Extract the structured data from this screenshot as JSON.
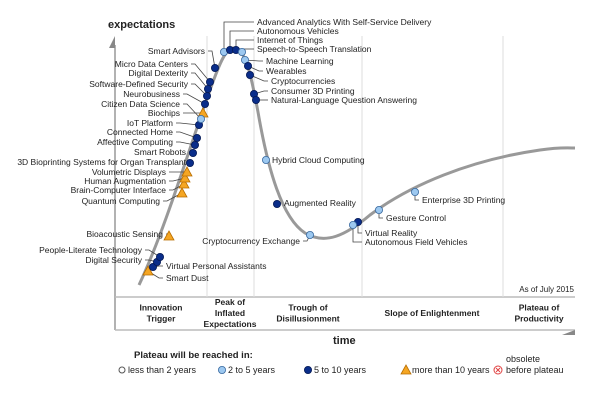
{
  "axes": {
    "y_label": "expectations",
    "x_label": "time"
  },
  "as_of": "As of July 2015",
  "phases": [
    {
      "lines": [
        "Innovation",
        "Trigger"
      ]
    },
    {
      "lines": [
        "Peak of",
        "Inflated",
        "Expectations"
      ]
    },
    {
      "lines": [
        "Trough of",
        "Disillusionment"
      ]
    },
    {
      "lines": [
        "Slope of Enlightenment"
      ]
    },
    {
      "lines": [
        "Plateau of",
        "Productivity"
      ]
    }
  ],
  "legend": {
    "title": "Plateau will be reached in:",
    "items": [
      {
        "key": "lt2",
        "label": "less than 2 years",
        "color": "#ffffff"
      },
      {
        "key": "2to5",
        "label": "2 to 5 years",
        "color": "#9cc8f0"
      },
      {
        "key": "5to10",
        "label": "5 to 10 years",
        "color": "#0a2d8a"
      },
      {
        "key": "gt10",
        "label": "more than 10 years",
        "color": "#f5a623"
      },
      {
        "key": "obs",
        "label": "obsolete before plateau",
        "lines": [
          "obsolete",
          "before plateau"
        ],
        "color": "#e04040"
      }
    ]
  },
  "technologies": [
    {
      "name": "Smart Dust",
      "cat": "gt10"
    },
    {
      "name": "Virtual Personal Assistants",
      "cat": "5to10"
    },
    {
      "name": "Digital Security",
      "cat": "5to10"
    },
    {
      "name": "People-Literate Technology",
      "cat": "5to10"
    },
    {
      "name": "Bioacoustic Sensing",
      "cat": "gt10"
    },
    {
      "name": "Quantum Computing",
      "cat": "gt10"
    },
    {
      "name": "Brain-Computer Interface",
      "cat": "gt10"
    },
    {
      "name": "Human Augmentation",
      "cat": "gt10"
    },
    {
      "name": "Volumetric Displays",
      "cat": "gt10"
    },
    {
      "name": "3D Bioprinting Systems for Organ Transplant",
      "cat": "5to10"
    },
    {
      "name": "Smart Robots",
      "cat": "5to10"
    },
    {
      "name": "Affective  Computing",
      "cat": "5to10"
    },
    {
      "name": "Connected Home",
      "cat": "5to10"
    },
    {
      "name": "IoT Platform",
      "cat": "5to10"
    },
    {
      "name": "Biochips",
      "cat": "gt10"
    },
    {
      "name": "Citizen Data Science",
      "cat": "2to5"
    },
    {
      "name": "Neurobusiness",
      "cat": "5to10"
    },
    {
      "name": "Software-Defined Security",
      "cat": "5to10"
    },
    {
      "name": "Digital Dexterity",
      "cat": "5to10"
    },
    {
      "name": "Micro Data Centers",
      "cat": "5to10"
    },
    {
      "name": "Smart Advisors",
      "cat": "5to10"
    },
    {
      "name": "Advanced Analytics With Self-Service Delivery",
      "cat": "2to5"
    },
    {
      "name": "Autonomous Vehicles",
      "cat": "5to10"
    },
    {
      "name": "Internet of Things",
      "cat": "5to10"
    },
    {
      "name": "Speech-to-Speech Translation",
      "cat": "2to5"
    },
    {
      "name": "Machine Learning",
      "cat": "2to5"
    },
    {
      "name": "Wearables",
      "cat": "5to10"
    },
    {
      "name": "Cryptocurrencies",
      "cat": "5to10"
    },
    {
      "name": "Consumer 3D Printing",
      "cat": "5to10"
    },
    {
      "name": "Natural-Language Question Answering",
      "cat": "5to10"
    },
    {
      "name": "Hybrid Cloud Computing",
      "cat": "2to5"
    },
    {
      "name": "Augmented Reality",
      "cat": "5to10"
    },
    {
      "name": "Cryptocurrency Exchange",
      "cat": "2to5"
    },
    {
      "name": "Virtual Reality",
      "cat": "5to10"
    },
    {
      "name": "Autonomous Field Vehicles",
      "cat": "2to5"
    },
    {
      "name": "Gesture Control",
      "cat": "2to5"
    },
    {
      "name": "Enterprise 3D Printing",
      "cat": "2to5"
    }
  ]
}
